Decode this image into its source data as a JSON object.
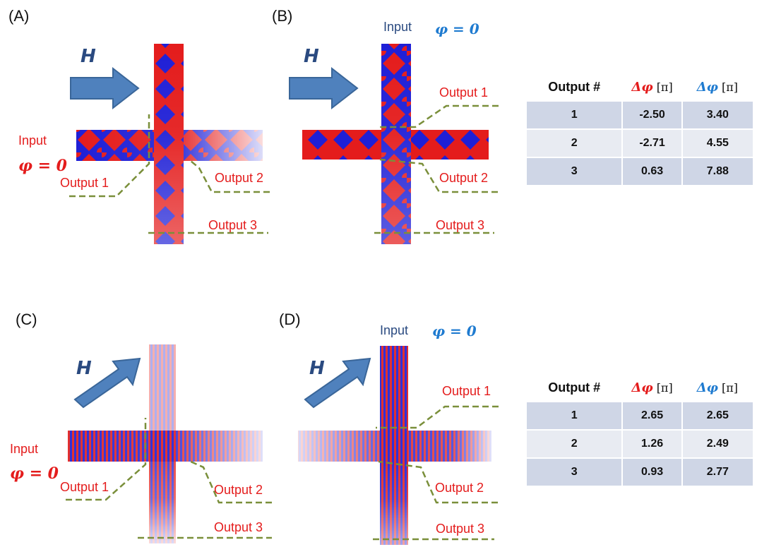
{
  "panels": [
    {
      "id": "A",
      "label": "(A)",
      "h_label": "H",
      "input_label": "Input",
      "phi_label": "φ = 0",
      "outputs": [
        "Output 1",
        "Output 2",
        "Output 3"
      ]
    },
    {
      "id": "B",
      "label": "(B)",
      "h_label": "H",
      "input_label": "Input",
      "phi_label": "φ = 0",
      "outputs": [
        "Output 1",
        "Output 2",
        "Output 3"
      ]
    },
    {
      "id": "C",
      "label": "(C)",
      "h_label": "H",
      "input_label": "Input",
      "phi_label": "φ = 0",
      "outputs": [
        "Output 1",
        "Output 2",
        "Output 3"
      ]
    },
    {
      "id": "D",
      "label": "(D)",
      "h_label": "H",
      "input_label": "Input",
      "phi_label": "φ = 0",
      "outputs": [
        "Output 1",
        "Output 2",
        "Output 3"
      ]
    }
  ],
  "tables": [
    {
      "header": {
        "col1": "Output #",
        "delta": "Δ",
        "phi": "φ",
        "unit": "[π]"
      },
      "rows": [
        {
          "n": "1",
          "red": "-2.50",
          "blue": "3.40"
        },
        {
          "n": "2",
          "red": "-2.71",
          "blue": "4.55"
        },
        {
          "n": "3",
          "red": "0.63",
          "blue": "7.88"
        }
      ]
    },
    {
      "header": {
        "col1": "Output #",
        "delta": "Δ",
        "phi": "φ",
        "unit": "[π]"
      },
      "rows": [
        {
          "n": "1",
          "red": "2.65",
          "blue": "2.65"
        },
        {
          "n": "2",
          "red": "1.26",
          "blue": "2.49"
        },
        {
          "n": "3",
          "red": "0.93",
          "blue": "2.77"
        }
      ]
    }
  ],
  "colors": {
    "red": "#e41c1c",
    "blue": "#1f1fd6",
    "phi_blue": "#1f7bd0",
    "arrow": "#4f81bd",
    "arrow_edge": "#3a6699",
    "dash": "#7a8f3a",
    "h_text": "#2a4a80"
  }
}
